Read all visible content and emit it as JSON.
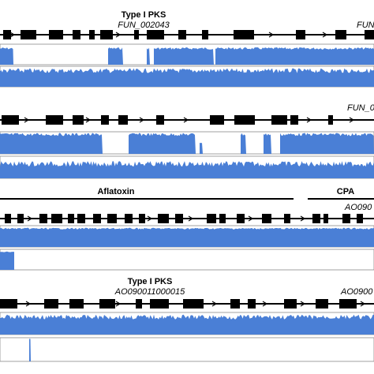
{
  "colors": {
    "background": "#ffffff",
    "coverage": "#4a7fd6",
    "gene": "#000000",
    "backbone": "#000000",
    "frame": "#8a8a8a"
  },
  "panels": [
    {
      "cluster_labels": [
        "Type I PKS"
      ],
      "gene_labels": [
        "FUN_002043",
        "FUN"
      ]
    },
    {
      "cluster_labels": [],
      "gene_labels": [
        "FUN_0"
      ]
    },
    {
      "cluster_labels": [
        "Aflatoxin",
        "CPA"
      ],
      "gene_labels": [
        "AO090"
      ]
    },
    {
      "cluster_labels": [
        "Type I PKS"
      ],
      "gene_labels": [
        "AO090011000015",
        "AO0900"
      ]
    }
  ]
}
